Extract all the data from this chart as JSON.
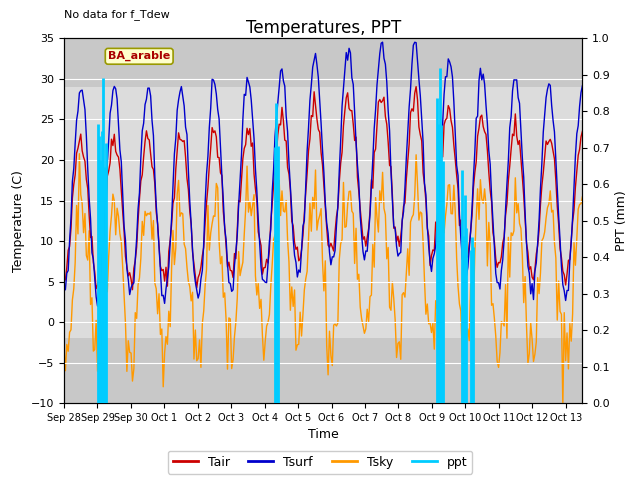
{
  "title": "Temperatures, PPT",
  "no_data_text": "No data for f_Tdew",
  "xlabel": "Time",
  "ylabel_left": "Temperature (C)",
  "ylabel_right": "PPT (mm)",
  "ylim_left": [
    -10,
    35
  ],
  "ylim_right": [
    0.0,
    1.0
  ],
  "yticks_left": [
    -10,
    -5,
    0,
    5,
    10,
    15,
    20,
    25,
    30,
    35
  ],
  "yticks_right": [
    0.0,
    0.1,
    0.2,
    0.3,
    0.4,
    0.5,
    0.6,
    0.7,
    0.8,
    0.9,
    1.0
  ],
  "shade_band_lo": -2,
  "shade_band_hi": 29,
  "shade_color": "#dcdcdc",
  "outer_bg": "#c8c8c8",
  "tair_color": "#cc0000",
  "tsurf_color": "#0000cc",
  "tsky_color": "#ff9900",
  "ppt_color": "#00ccff",
  "label_box_text": "BA_arable",
  "label_box_facecolor": "#ffffcc",
  "label_box_edgecolor": "#999900",
  "legend_labels": [
    "Tair",
    "Tsurf",
    "Tsky",
    "ppt"
  ],
  "n_days": 15.5,
  "tick_labels": [
    "Sep 28",
    "Sep 29",
    "Sep 30",
    "Oct 1",
    "Oct 2",
    "Oct 3",
    "Oct 4",
    "Oct 5",
    "Oct 6",
    "Oct 7",
    "Oct 8",
    "Oct 9",
    "Oct 10",
    "Oct 11",
    "Oct 12",
    "Oct 13"
  ],
  "title_fontsize": 12,
  "axis_label_fontsize": 9,
  "tick_fontsize": 8
}
